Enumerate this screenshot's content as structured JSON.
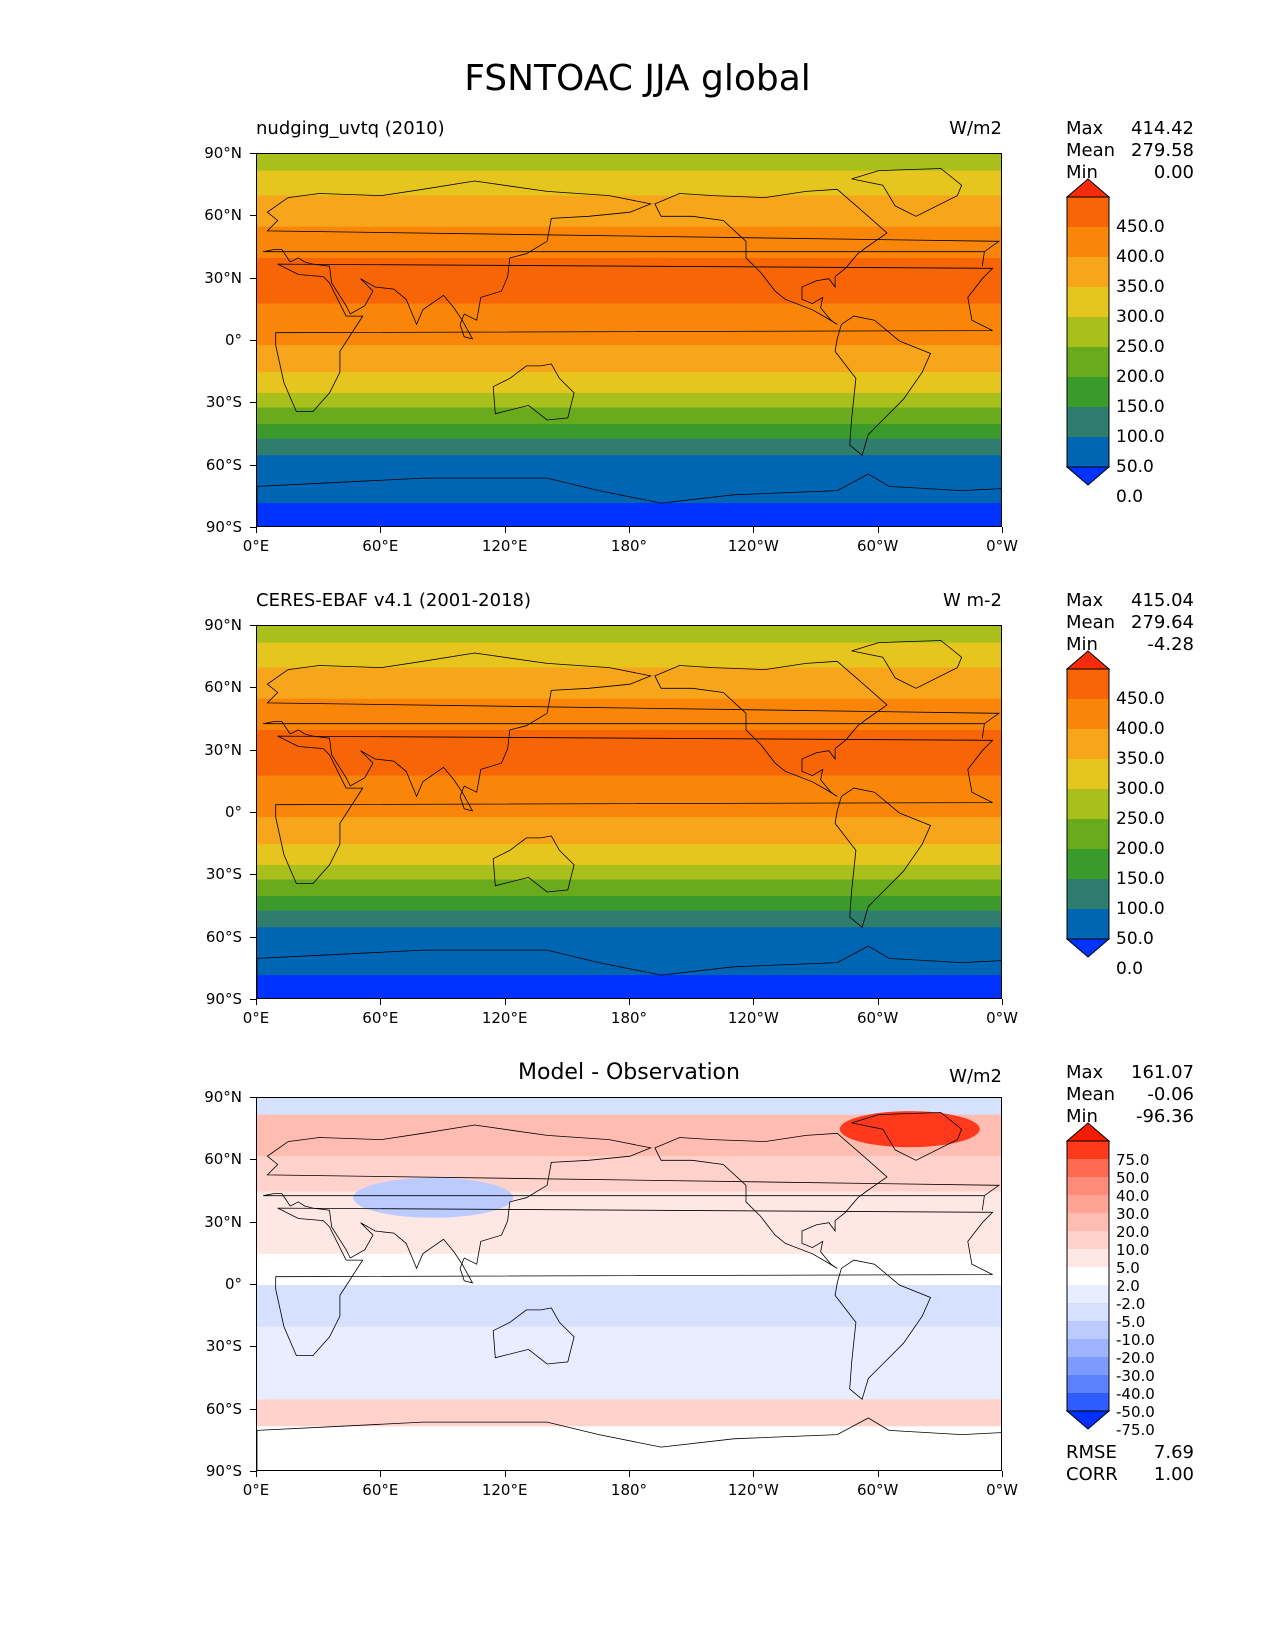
{
  "figure_title": "FSNTOAC JJA global",
  "axes": {
    "lat_ticks": [
      "90°N",
      "60°N",
      "30°N",
      "0°",
      "30°S",
      "60°S",
      "90°S"
    ],
    "lon_ticks": [
      "0°E",
      "60°E",
      "120°E",
      "180°",
      "120°W",
      "60°W",
      "0°W"
    ]
  },
  "panels": [
    {
      "title": "nudging_uvtq (2010)",
      "units": "W/m2",
      "stats": {
        "max_label": "Max",
        "max": "414.42",
        "mean_label": "Mean",
        "mean": "279.58",
        "min_label": "Min",
        "min": "0.00"
      },
      "colorbar": {
        "labels": [
          "450.0",
          "400.0",
          "350.0",
          "300.0",
          "250.0",
          "200.0",
          "150.0",
          "100.0",
          "50.0",
          "0.0"
        ]
      }
    },
    {
      "title": "CERES-EBAF v4.1 (2001-2018)",
      "units": "W m-2",
      "stats": {
        "max_label": "Max",
        "max": "415.04",
        "mean_label": "Mean",
        "mean": "279.64",
        "min_label": "Min",
        "min": "-4.28"
      },
      "colorbar": {
        "labels": [
          "450.0",
          "400.0",
          "350.0",
          "300.0",
          "250.0",
          "200.0",
          "150.0",
          "100.0",
          "50.0",
          "0.0"
        ]
      }
    },
    {
      "title": "Model - Observation",
      "units": "W/m2",
      "stats": {
        "max_label": "Max",
        "max": "161.07",
        "mean_label": "Mean",
        "mean": "-0.06",
        "min_label": "Min",
        "min": "-96.36"
      },
      "colorbar": {
        "labels": [
          "75.0",
          "50.0",
          "40.0",
          "30.0",
          "20.0",
          "10.0",
          "5.0",
          "2.0",
          "-2.0",
          "-5.0",
          "-10.0",
          "-20.0",
          "-30.0",
          "-40.0",
          "-50.0",
          "-75.0"
        ]
      },
      "metrics": {
        "rmse_label": "RMSE",
        "rmse": "7.69",
        "corr_label": "CORR",
        "corr": "1.00"
      }
    }
  ],
  "colors": {
    "abs_levels": [
      "#0033ff",
      "#0066b3",
      "#2e7d6e",
      "#3a9a2b",
      "#6aab1e",
      "#a8bf1c",
      "#e6c51f",
      "#f7a51a",
      "#f98609",
      "#f86506",
      "#f72c0c"
    ],
    "diff_levels": [
      "#0030ff",
      "#2e5cff",
      "#5a82ff",
      "#7d9bff",
      "#9fb4ff",
      "#bccbff",
      "#d6e0ff",
      "#e8eeff",
      "#ffffff",
      "#ffe8e4",
      "#ffd2cb",
      "#ffbdb2",
      "#ffa394",
      "#ff8a77",
      "#ff6a52",
      "#ff3a1c",
      "#f41c00"
    ]
  }
}
